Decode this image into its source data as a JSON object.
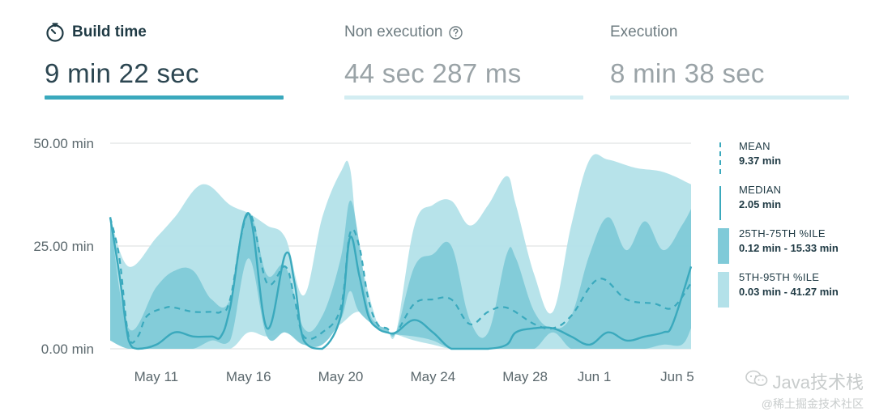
{
  "tabs": [
    {
      "label": "Build time",
      "value": "9 min 22 sec",
      "active": true,
      "icon": "stopwatch-icon",
      "bar_color": "#3aa9bd"
    },
    {
      "label": "Non execution",
      "value": "44 sec 287 ms",
      "active": false,
      "icon": "help-icon",
      "bar_color": "#d3edf2"
    },
    {
      "label": "Execution",
      "value": "8 min 38 sec",
      "active": false,
      "icon": "",
      "bar_color": "#d3edf2"
    }
  ],
  "legend": [
    {
      "name": "MEAN",
      "value": "9.37 min",
      "style": "dashed-line"
    },
    {
      "name": "MEDIAN",
      "value": "2.05 min",
      "style": "solid-line"
    },
    {
      "name": "25TH-75TH %ILE",
      "value": "0.12 min - 15.33 min",
      "style": "dark-band"
    },
    {
      "name": "5TH-95TH %ILE",
      "value": "0.03 min - 41.27 min",
      "style": "light-band"
    }
  ],
  "watermark": {
    "line1": "Java技术栈",
    "line2": "@稀土掘金技术社区"
  },
  "chart_data": {
    "type": "area",
    "ylim": [
      0,
      50
    ],
    "yticks": [
      {
        "value": 0,
        "label": "0.00 min"
      },
      {
        "value": 25,
        "label": "25.00 min"
      },
      {
        "value": 50,
        "label": "50.00 min"
      }
    ],
    "xlim": [
      0,
      63
    ],
    "xticks": [
      {
        "x": 5,
        "label": "May 11"
      },
      {
        "x": 15,
        "label": "May 16"
      },
      {
        "x": 25,
        "label": "May 20"
      },
      {
        "x": 35,
        "label": "May 24"
      },
      {
        "x": 45,
        "label": "May 28"
      },
      {
        "x": 52.5,
        "label": "Jun 1"
      },
      {
        "x": 61.5,
        "label": "Jun 5"
      }
    ],
    "colors": {
      "light_band": "#b3e1e9",
      "dark_band": "#7fcad8",
      "line": "#3aa9bd",
      "grid": "#d8dcdd"
    },
    "series": [
      {
        "name": "5TH-95TH %ILE",
        "role": "band",
        "upper": [
          [
            0,
            32
          ],
          [
            2,
            20
          ],
          [
            5,
            27
          ],
          [
            7,
            32
          ],
          [
            10,
            40
          ],
          [
            13,
            35
          ],
          [
            15,
            33
          ],
          [
            17,
            30
          ],
          [
            19,
            27
          ],
          [
            21,
            13
          ],
          [
            23,
            32
          ],
          [
            25,
            43
          ],
          [
            26,
            44
          ],
          [
            27,
            24
          ],
          [
            29,
            6
          ],
          [
            30,
            5
          ],
          [
            31,
            4
          ],
          [
            33,
            30
          ],
          [
            35,
            35
          ],
          [
            37,
            36
          ],
          [
            39,
            30
          ],
          [
            41,
            35
          ],
          [
            43,
            42
          ],
          [
            44,
            35
          ],
          [
            46,
            18
          ],
          [
            48,
            9
          ],
          [
            50,
            30
          ],
          [
            52,
            46
          ],
          [
            54,
            46
          ],
          [
            57,
            44
          ],
          [
            60,
            43
          ],
          [
            63,
            40
          ]
        ],
        "lower": [
          [
            63,
            0
          ],
          [
            60,
            0
          ],
          [
            57,
            0
          ],
          [
            54,
            0
          ],
          [
            52,
            0
          ],
          [
            50,
            0
          ],
          [
            48,
            0
          ],
          [
            46,
            0
          ],
          [
            44,
            0
          ],
          [
            42,
            0
          ],
          [
            40,
            0
          ],
          [
            37,
            0
          ],
          [
            35,
            1
          ],
          [
            33,
            2
          ],
          [
            31,
            3.5
          ],
          [
            30,
            4
          ],
          [
            29,
            5
          ],
          [
            27,
            9
          ],
          [
            25,
            6
          ],
          [
            23,
            3
          ],
          [
            21,
            1
          ],
          [
            19,
            4
          ],
          [
            17,
            3
          ],
          [
            15,
            4
          ],
          [
            13,
            0
          ],
          [
            10,
            0
          ],
          [
            7,
            0
          ],
          [
            5,
            0
          ],
          [
            3,
            0
          ],
          [
            2,
            0
          ],
          [
            0,
            2
          ]
        ]
      },
      {
        "name": "25TH-75TH %ILE",
        "role": "band",
        "upper": [
          [
            0,
            32
          ],
          [
            2,
            5
          ],
          [
            5,
            15
          ],
          [
            7,
            19
          ],
          [
            9,
            19
          ],
          [
            11,
            12
          ],
          [
            13,
            12
          ],
          [
            15,
            33
          ],
          [
            17,
            18
          ],
          [
            19,
            20
          ],
          [
            21,
            5
          ],
          [
            23,
            8
          ],
          [
            25,
            22
          ],
          [
            26,
            36
          ],
          [
            27,
            26
          ],
          [
            28,
            10
          ],
          [
            29,
            6
          ],
          [
            30,
            5
          ],
          [
            31,
            4
          ],
          [
            33,
            20
          ],
          [
            35,
            23
          ],
          [
            37,
            25
          ],
          [
            39,
            7
          ],
          [
            41,
            4
          ],
          [
            43,
            23
          ],
          [
            44,
            22
          ],
          [
            46,
            9
          ],
          [
            48,
            5
          ],
          [
            50,
            8
          ],
          [
            52,
            23
          ],
          [
            54,
            32
          ],
          [
            56,
            24
          ],
          [
            58,
            31
          ],
          [
            60,
            24
          ],
          [
            62,
            30
          ],
          [
            63,
            34
          ]
        ],
        "lower": [
          [
            63,
            5
          ],
          [
            62,
            1
          ],
          [
            60,
            1
          ],
          [
            58,
            0
          ],
          [
            56,
            0
          ],
          [
            54,
            0
          ],
          [
            52,
            0
          ],
          [
            50,
            0
          ],
          [
            48,
            4
          ],
          [
            46,
            0
          ],
          [
            44,
            0
          ],
          [
            43,
            0
          ],
          [
            41,
            0
          ],
          [
            39,
            0
          ],
          [
            37,
            0
          ],
          [
            35,
            2
          ],
          [
            33,
            3
          ],
          [
            31,
            3.5
          ],
          [
            30,
            4
          ],
          [
            29,
            5
          ],
          [
            27,
            9
          ],
          [
            26,
            14
          ],
          [
            25,
            7
          ],
          [
            23,
            1
          ],
          [
            21,
            1
          ],
          [
            19,
            4
          ],
          [
            17,
            3
          ],
          [
            15,
            22
          ],
          [
            13,
            2
          ],
          [
            11,
            2
          ],
          [
            9,
            0
          ],
          [
            7,
            0
          ],
          [
            5,
            0
          ],
          [
            2,
            0
          ],
          [
            0,
            2
          ]
        ]
      },
      {
        "name": "MEAN",
        "role": "dashed-line",
        "points": [
          [
            0,
            32
          ],
          [
            1,
            22
          ],
          [
            2,
            3
          ],
          [
            3,
            3
          ],
          [
            4,
            8
          ],
          [
            6,
            10
          ],
          [
            7,
            10
          ],
          [
            9,
            9
          ],
          [
            11,
            9
          ],
          [
            12,
            9
          ],
          [
            13,
            12
          ],
          [
            15,
            33
          ],
          [
            17,
            16
          ],
          [
            19,
            20
          ],
          [
            20,
            12
          ],
          [
            21,
            3
          ],
          [
            23,
            4
          ],
          [
            25,
            10
          ],
          [
            26,
            28
          ],
          [
            27,
            25
          ],
          [
            28,
            12
          ],
          [
            29,
            6
          ],
          [
            30,
            5
          ],
          [
            31,
            4
          ],
          [
            33,
            11
          ],
          [
            35,
            12
          ],
          [
            37,
            12
          ],
          [
            39,
            6
          ],
          [
            41,
            9
          ],
          [
            43,
            10
          ],
          [
            46,
            6
          ],
          [
            48,
            5
          ],
          [
            50,
            8
          ],
          [
            53,
            17
          ],
          [
            56,
            12
          ],
          [
            59,
            11
          ],
          [
            61,
            10
          ],
          [
            63,
            16
          ]
        ]
      },
      {
        "name": "MEDIAN",
        "role": "solid-line",
        "points": [
          [
            0,
            32
          ],
          [
            1,
            18
          ],
          [
            2,
            2
          ],
          [
            3,
            0
          ],
          [
            5,
            1
          ],
          [
            7,
            4
          ],
          [
            9,
            3
          ],
          [
            11,
            3
          ],
          [
            12,
            3
          ],
          [
            13,
            10
          ],
          [
            15,
            33
          ],
          [
            17,
            5
          ],
          [
            19,
            23
          ],
          [
            20,
            16
          ],
          [
            21,
            2
          ],
          [
            23,
            0
          ],
          [
            25,
            8
          ],
          [
            26,
            27
          ],
          [
            27,
            18
          ],
          [
            28,
            8
          ],
          [
            29,
            5
          ],
          [
            30,
            4
          ],
          [
            31,
            4
          ],
          [
            33,
            7
          ],
          [
            35,
            4
          ],
          [
            37,
            0
          ],
          [
            39,
            0
          ],
          [
            41,
            0
          ],
          [
            43,
            1
          ],
          [
            44,
            4
          ],
          [
            46,
            5
          ],
          [
            48,
            5
          ],
          [
            50,
            3
          ],
          [
            52,
            1
          ],
          [
            54,
            4
          ],
          [
            56,
            2
          ],
          [
            58,
            3
          ],
          [
            60,
            4
          ],
          [
            61,
            6
          ],
          [
            63,
            20
          ]
        ]
      }
    ]
  }
}
